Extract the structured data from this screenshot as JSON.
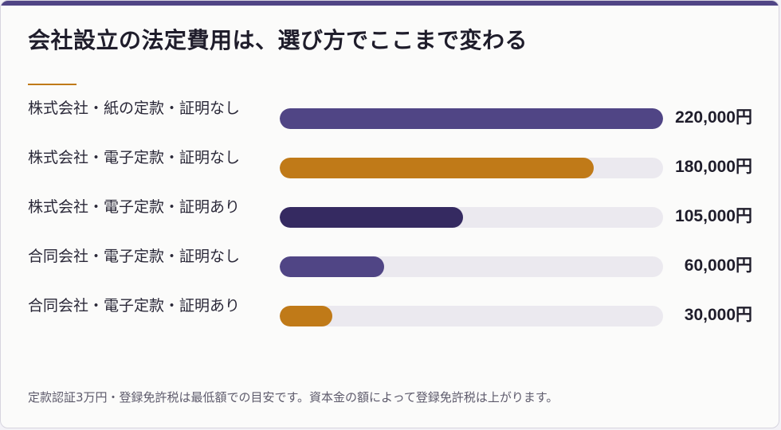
{
  "title": "会社設立の法定費用は、選び方でここまで変わる",
  "footnote": "定款認証3万円・登録免許税は最低額での目安です。資本金の額によって登録免許税は上がります。",
  "colors": {
    "purple": "#504585",
    "orange": "#c07a18",
    "dark_purple": "#352a61",
    "track": "#ebe9ef",
    "accent_rule": "#c07a18",
    "top_band": "#504585"
  },
  "chart_data": {
    "type": "bar",
    "orientation": "horizontal",
    "title": "会社設立の法定費用は、選び方でここまで変わる",
    "categories": [
      "株式会社・紙の定款・証明なし",
      "株式会社・電子定款・証明なし",
      "株式会社・電子定款・証明あり",
      "合同会社・電子定款・証明なし",
      "合同会社・電子定款・証明あり"
    ],
    "values": [
      220000,
      180000,
      105000,
      60000,
      30000
    ],
    "value_labels": [
      "220,000円",
      "180,000円",
      "105,000円",
      "60,000円",
      "30,000円"
    ],
    "bar_colors": [
      "#504585",
      "#c07a18",
      "#352a61",
      "#504585",
      "#c07a18"
    ],
    "xlim": [
      0,
      220000
    ],
    "grid": false,
    "legend": "none"
  }
}
